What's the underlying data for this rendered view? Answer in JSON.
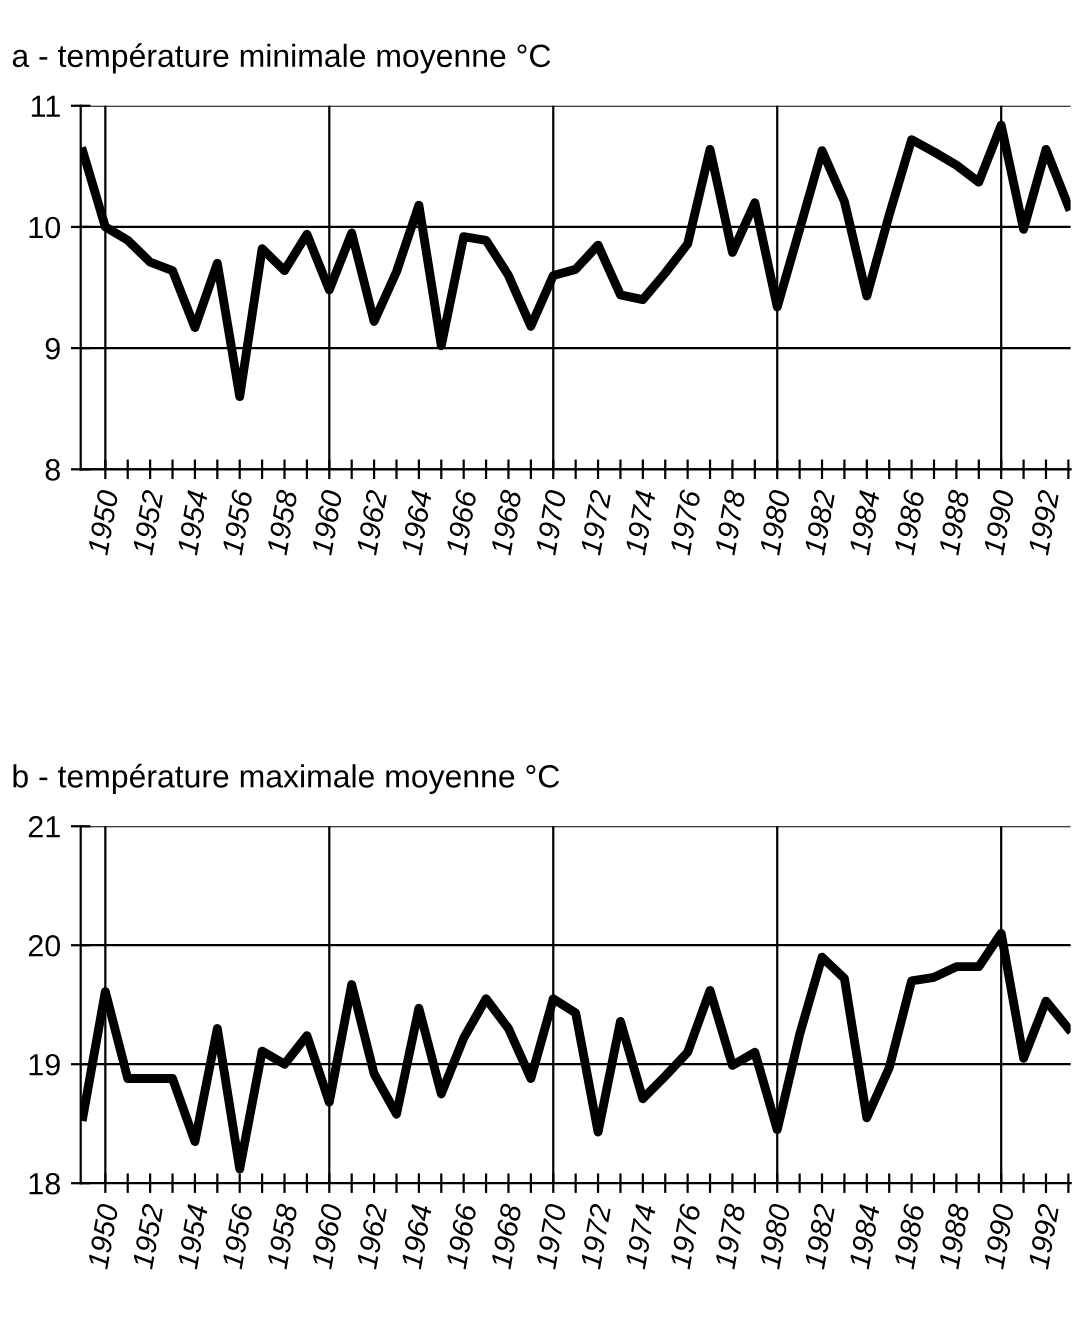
{
  "chart_data": [
    {
      "type": "line",
      "title": "a - température minimale moyenne °C",
      "x": [
        1949,
        1950,
        1951,
        1952,
        1953,
        1954,
        1955,
        1956,
        1957,
        1958,
        1959,
        1960,
        1961,
        1962,
        1963,
        1964,
        1965,
        1966,
        1967,
        1968,
        1969,
        1970,
        1971,
        1972,
        1973,
        1974,
        1975,
        1976,
        1977,
        1978,
        1979,
        1980,
        1981,
        1982,
        1983,
        1984,
        1985,
        1986,
        1987,
        1988,
        1989,
        1990,
        1991,
        1992,
        1993
      ],
      "series": [
        {
          "color": "#000000",
          "values": [
            10.62,
            10.0,
            9.89,
            9.71,
            9.64,
            9.17,
            9.7,
            8.6,
            9.82,
            9.64,
            9.94,
            9.48,
            9.95,
            9.22,
            9.63,
            10.18,
            9.02,
            9.92,
            9.89,
            9.6,
            9.18,
            9.6,
            9.65,
            9.85,
            9.44,
            9.4,
            9.62,
            9.86,
            10.64,
            9.79,
            10.2,
            9.34,
            9.98,
            10.63,
            10.21,
            9.43,
            10.1,
            10.72,
            10.62,
            10.51,
            10.37,
            10.84,
            9.98,
            10.64,
            10.17
          ]
        }
      ],
      "xlim": [
        1948.9,
        1993.1
      ],
      "ylim": [
        8,
        11
      ],
      "yticks": [
        8,
        9,
        10,
        11
      ],
      "xticks": [
        1950,
        {
          "value": 1951,
          "label": null
        },
        1952,
        {
          "value": 1953,
          "label": null
        },
        1954,
        {
          "value": 1955,
          "label": null
        },
        1956,
        {
          "value": 1957,
          "label": null
        },
        1958,
        {
          "value": 1959,
          "label": null
        },
        1960,
        {
          "value": 1961,
          "label": null
        },
        1962,
        {
          "value": 1963,
          "label": null
        },
        1964,
        {
          "value": 1965,
          "label": null
        },
        1966,
        {
          "value": 1967,
          "label": null
        },
        1968,
        {
          "value": 1969,
          "label": null
        },
        1970,
        {
          "value": 1971,
          "label": null
        },
        1972,
        {
          "value": 1973,
          "label": null
        },
        1974,
        {
          "value": 1975,
          "label": null
        },
        1976,
        {
          "value": 1977,
          "label": null
        },
        1978,
        {
          "value": 1979,
          "label": null
        },
        1980,
        {
          "value": 1981,
          "label": null
        },
        1982,
        {
          "value": 1983,
          "label": null
        },
        1984,
        {
          "value": 1985,
          "label": null
        },
        1986,
        {
          "value": 1987,
          "label": null
        },
        1988,
        {
          "value": 1989,
          "label": null
        },
        1990,
        {
          "value": 1991,
          "label": null
        },
        1992,
        {
          "value": 1993,
          "label": null
        }
      ],
      "ref_lines": [
        {
          "axis": "x",
          "value": 1950
        },
        {
          "axis": "x",
          "value": 1960
        },
        {
          "axis": "x",
          "value": 1970
        },
        {
          "axis": "x",
          "value": 1980
        },
        {
          "axis": "x",
          "value": 1990
        }
      ],
      "grid": "y",
      "legend": false,
      "marker": "none",
      "line_style": "solid"
    },
    {
      "type": "line",
      "title": "b - température maximale moyenne °C",
      "x": [
        1949,
        1950,
        1951,
        1952,
        1953,
        1954,
        1955,
        1956,
        1957,
        1958,
        1959,
        1960,
        1961,
        1962,
        1963,
        1964,
        1965,
        1966,
        1967,
        1968,
        1969,
        1970,
        1971,
        1972,
        1973,
        1974,
        1975,
        1976,
        1977,
        1978,
        1979,
        1980,
        1981,
        1982,
        1983,
        1984,
        1985,
        1986,
        1987,
        1988,
        1989,
        1990,
        1991,
        1992,
        1993
      ],
      "series": [
        {
          "color": "#000000",
          "values": [
            18.56,
            19.61,
            18.88,
            18.88,
            18.88,
            18.35,
            19.3,
            18.12,
            19.11,
            19.0,
            19.24,
            18.68,
            19.67,
            18.92,
            18.58,
            19.47,
            18.75,
            19.22,
            19.55,
            19.3,
            18.88,
            19.55,
            19.43,
            18.43,
            19.36,
            18.71,
            18.9,
            19.1,
            19.62,
            18.99,
            19.1,
            18.45,
            19.25,
            19.9,
            19.72,
            18.55,
            18.97,
            19.7,
            19.73,
            19.82,
            19.82,
            20.1,
            19.05,
            19.53,
            19.3
          ]
        }
      ],
      "xlim": [
        1948.9,
        1993.1
      ],
      "ylim": [
        18,
        21
      ],
      "yticks": [
        18,
        19,
        20,
        21
      ],
      "xticks": [
        1950,
        {
          "value": 1951,
          "label": null
        },
        1952,
        {
          "value": 1953,
          "label": null
        },
        1954,
        {
          "value": 1955,
          "label": null
        },
        1956,
        {
          "value": 1957,
          "label": null
        },
        1958,
        {
          "value": 1959,
          "label": null
        },
        1960,
        {
          "value": 1961,
          "label": null
        },
        1962,
        {
          "value": 1963,
          "label": null
        },
        1964,
        {
          "value": 1965,
          "label": null
        },
        1966,
        {
          "value": 1967,
          "label": null
        },
        1968,
        {
          "value": 1969,
          "label": null
        },
        1970,
        {
          "value": 1971,
          "label": null
        },
        1972,
        {
          "value": 1973,
          "label": null
        },
        1974,
        {
          "value": 1975,
          "label": null
        },
        1976,
        {
          "value": 1977,
          "label": null
        },
        1978,
        {
          "value": 1979,
          "label": null
        },
        1980,
        {
          "value": 1981,
          "label": null
        },
        1982,
        {
          "value": 1983,
          "label": null
        },
        1984,
        {
          "value": 1985,
          "label": null
        },
        1986,
        {
          "value": 1987,
          "label": null
        },
        1988,
        {
          "value": 1989,
          "label": null
        },
        1990,
        {
          "value": 1991,
          "label": null
        },
        1992,
        {
          "value": 1993,
          "label": null
        }
      ],
      "ref_lines": [
        {
          "axis": "x",
          "value": 1950
        },
        {
          "axis": "x",
          "value": 1960
        },
        {
          "axis": "x",
          "value": 1970
        },
        {
          "axis": "x",
          "value": 1980
        },
        {
          "axis": "x",
          "value": 1990
        }
      ],
      "grid": "y",
      "legend": false,
      "marker": "none",
      "line_style": "solid"
    }
  ]
}
